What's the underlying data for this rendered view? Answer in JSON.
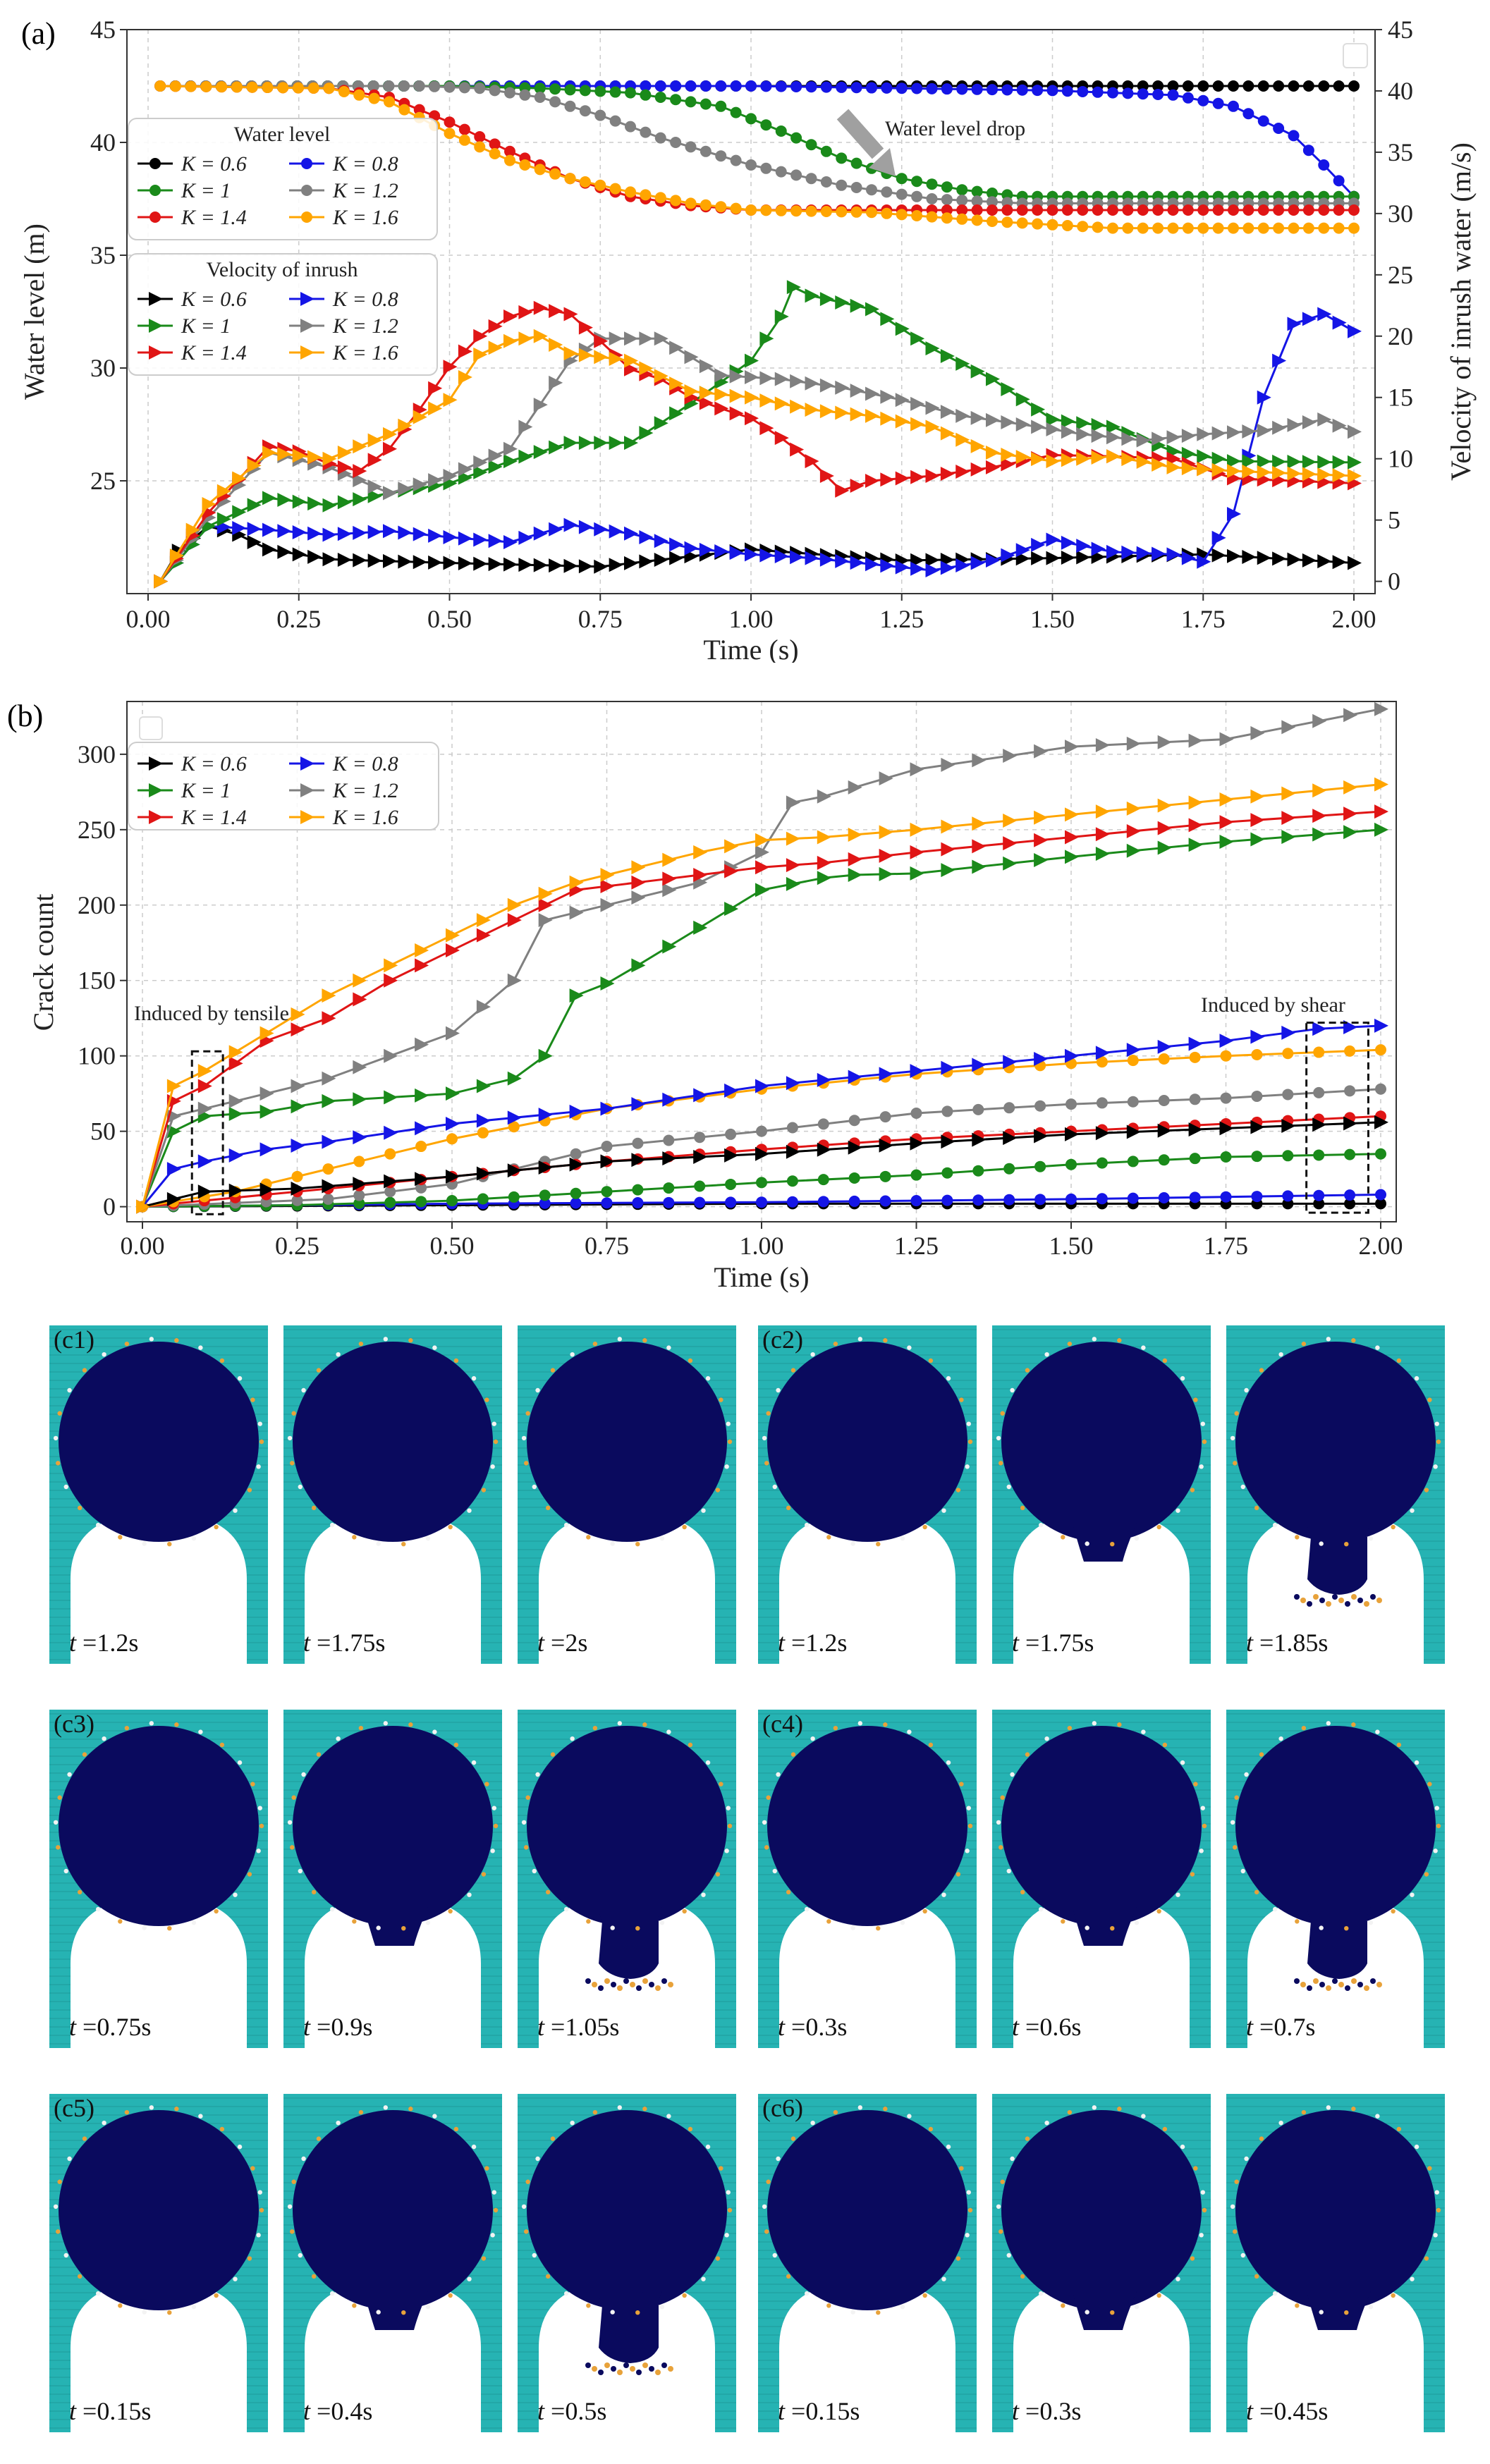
{
  "colors": {
    "K0.6": "#000000",
    "K0.8": "#1515e6",
    "K1": "#1a8a1a",
    "K1.2": "#808080",
    "K1.4": "#e01515",
    "K1.6": "#ffa500",
    "teal": "#26b3b3",
    "rock": "#0a0a5e",
    "grid": "#cccccc"
  },
  "chart_data": [
    {
      "id": "a",
      "panel_label": "(a)",
      "type": "line",
      "xlabel": "Time (s)",
      "ylabel": "Water level (m)",
      "y2label": "Velocity of inrush water (m/s)",
      "xlim": [
        0,
        2.0
      ],
      "ylim": [
        20,
        45
      ],
      "y2lim": [
        -1,
        45
      ],
      "xticks": [
        "0.00",
        "0.25",
        "0.50",
        "0.75",
        "1.00",
        "1.25",
        "1.50",
        "1.75",
        "2.00"
      ],
      "yticks": [
        "25",
        "30",
        "35",
        "40",
        "45"
      ],
      "y2ticks": [
        "0",
        "5",
        "10",
        "15",
        "20",
        "25",
        "30",
        "35",
        "40",
        "45"
      ],
      "legend_water_title": "Water level",
      "legend_velocity_title": "Velocity of inrush",
      "annotation": "Water level drop",
      "water_level": [
        {
          "name": "K = 0.6",
          "key": "K0.6",
          "x": [
            0.02,
            0.5,
            1.0,
            1.5,
            1.75,
            2.0
          ],
          "y": [
            42.5,
            42.5,
            42.5,
            42.5,
            42.5,
            42.5
          ]
        },
        {
          "name": "K = 0.8",
          "key": "K0.8",
          "x": [
            0.02,
            0.5,
            1.0,
            1.5,
            1.7,
            1.8,
            1.9,
            1.95,
            2.0
          ],
          "y": [
            42.5,
            42.5,
            42.5,
            42.3,
            42.1,
            41.6,
            40.3,
            39.0,
            37.6
          ]
        },
        {
          "name": "K = 1",
          "key": "K1",
          "x": [
            0.02,
            0.5,
            0.65,
            0.8,
            0.95,
            1.05,
            1.15,
            1.25,
            1.35,
            1.45,
            1.6,
            2.0
          ],
          "y": [
            42.5,
            42.5,
            42.4,
            42.2,
            41.6,
            40.5,
            39.3,
            38.4,
            37.9,
            37.6,
            37.6,
            37.6
          ]
        },
        {
          "name": "K = 1.2",
          "key": "K1.2",
          "x": [
            0.02,
            0.45,
            0.55,
            0.65,
            0.75,
            0.85,
            1.0,
            1.15,
            1.3,
            1.45,
            1.6,
            2.0
          ],
          "y": [
            42.5,
            42.5,
            42.4,
            42.0,
            41.2,
            40.2,
            39.0,
            38.1,
            37.5,
            37.3,
            37.3,
            37.3
          ]
        },
        {
          "name": "K = 1.4",
          "key": "K1.4",
          "x": [
            0.02,
            0.3,
            0.4,
            0.5,
            0.6,
            0.7,
            0.8,
            0.9,
            1.0,
            1.2,
            1.5,
            2.0
          ],
          "y": [
            42.5,
            42.4,
            42.0,
            40.9,
            39.6,
            38.4,
            37.6,
            37.2,
            37.0,
            37.0,
            37.0,
            37.0
          ]
        },
        {
          "name": "K = 1.6",
          "key": "K1.6",
          "x": [
            0.02,
            0.3,
            0.4,
            0.5,
            0.6,
            0.7,
            0.8,
            0.9,
            1.0,
            1.2,
            1.4,
            1.6,
            2.0
          ],
          "y": [
            42.5,
            42.4,
            41.8,
            40.4,
            39.2,
            38.4,
            37.8,
            37.3,
            37.0,
            36.9,
            36.5,
            36.2,
            36.2
          ]
        }
      ],
      "velocity": [
        {
          "name": "K = 0.6",
          "key": "K0.6",
          "x": [
            0.02,
            0.05,
            0.1,
            0.15,
            0.2,
            0.3,
            0.5,
            0.75,
            1.0,
            1.25,
            1.5,
            1.75,
            2.0
          ],
          "y": [
            0,
            2.5,
            4.5,
            3.8,
            2.6,
            1.8,
            1.5,
            1.2,
            2.6,
            1.7,
            1.9,
            2.2,
            1.5
          ]
        },
        {
          "name": "K = 0.8",
          "key": "K0.8",
          "x": [
            0.02,
            0.1,
            0.2,
            0.3,
            0.4,
            0.5,
            0.6,
            0.7,
            0.8,
            0.9,
            1.0,
            1.1,
            1.2,
            1.3,
            1.4,
            1.5,
            1.6,
            1.7,
            1.75,
            1.8,
            1.85,
            1.9,
            1.95,
            2.0
          ],
          "y": [
            0,
            4.5,
            4.2,
            3.8,
            4.1,
            3.6,
            3.2,
            4.6,
            3.9,
            2.7,
            2.2,
            1.9,
            1.4,
            0.9,
            1.7,
            3.4,
            2.4,
            2.2,
            1.6,
            5.5,
            15.0,
            21.0,
            21.8,
            20.4
          ]
        },
        {
          "name": "K = 1",
          "key": "K1",
          "x": [
            0.02,
            0.1,
            0.2,
            0.3,
            0.4,
            0.5,
            0.6,
            0.7,
            0.8,
            0.9,
            1.0,
            1.05,
            1.07,
            1.1,
            1.2,
            1.3,
            1.4,
            1.5,
            1.6,
            1.7,
            1.8,
            2.0
          ],
          "y": [
            0,
            4.5,
            6.8,
            6.2,
            7.2,
            8.0,
            9.8,
            11.3,
            11.3,
            14.5,
            18.0,
            21.6,
            24.0,
            23.3,
            22.2,
            19.0,
            16.5,
            13.2,
            12.6,
            10.6,
            9.8,
            9.7
          ]
        },
        {
          "name": "K = 1.2",
          "key": "K1.2",
          "x": [
            0.02,
            0.1,
            0.2,
            0.3,
            0.4,
            0.5,
            0.6,
            0.7,
            0.75,
            0.85,
            0.95,
            1.05,
            1.15,
            1.25,
            1.35,
            1.45,
            1.55,
            1.65,
            1.75,
            1.85,
            1.95,
            2.0
          ],
          "y": [
            0,
            5.2,
            10.5,
            9.3,
            7.2,
            8.6,
            10.8,
            18.0,
            19.8,
            19.8,
            16.8,
            16.5,
            15.8,
            14.8,
            13.5,
            12.8,
            12.0,
            11.5,
            12.0,
            12.3,
            13.2,
            12.2
          ]
        },
        {
          "name": "K = 1.4",
          "key": "K1.4",
          "x": [
            0.02,
            0.1,
            0.15,
            0.2,
            0.25,
            0.3,
            0.35,
            0.4,
            0.45,
            0.5,
            0.55,
            0.6,
            0.65,
            0.7,
            0.75,
            0.8,
            0.85,
            0.9,
            0.95,
            1.0,
            1.05,
            1.1,
            1.15,
            1.2,
            1.3,
            1.4,
            1.5,
            1.6,
            1.7,
            1.8,
            2.0
          ],
          "y": [
            0,
            5.6,
            8.3,
            11.0,
            10.6,
            9.6,
            9.0,
            10.8,
            14.0,
            17.5,
            20.0,
            21.6,
            22.3,
            21.8,
            19.6,
            17.3,
            16.5,
            15.0,
            14.1,
            13.3,
            11.7,
            9.8,
            7.4,
            8.2,
            8.6,
            9.3,
            10.3,
            10.2,
            10.0,
            8.4,
            8.0
          ]
        },
        {
          "name": "K = 1.6",
          "key": "K1.6",
          "x": [
            0.02,
            0.1,
            0.2,
            0.3,
            0.4,
            0.5,
            0.55,
            0.6,
            0.65,
            0.7,
            0.8,
            0.9,
            1.0,
            1.1,
            1.2,
            1.3,
            1.4,
            1.5,
            1.6,
            1.7,
            1.8,
            2.0
          ],
          "y": [
            0,
            6.3,
            10.5,
            10.0,
            12.0,
            14.8,
            18.5,
            19.6,
            20.0,
            18.6,
            18.0,
            15.5,
            15.0,
            14.0,
            13.5,
            12.6,
            10.5,
            9.8,
            10.2,
            9.3,
            9.0,
            8.6
          ]
        }
      ]
    },
    {
      "id": "b",
      "panel_label": "(b)",
      "type": "line",
      "xlabel": "Time (s)",
      "ylabel": "Crack count",
      "xlim": [
        0,
        2.0
      ],
      "ylim": [
        -10,
        335
      ],
      "xticks": [
        "0.00",
        "0.25",
        "0.50",
        "0.75",
        "1.00",
        "1.25",
        "1.50",
        "1.75",
        "2.00"
      ],
      "yticks": [
        "0",
        "50",
        "100",
        "150",
        "200",
        "250",
        "300"
      ],
      "annotations": [
        "Induced by tensile",
        "Induced by shear"
      ],
      "tension": [
        {
          "name": "K = 0.6",
          "key": "K0.6",
          "x": [
            0.0,
            0.1,
            0.25,
            0.5,
            0.75,
            1.0,
            1.25,
            1.5,
            1.75,
            2.0
          ],
          "y": [
            0,
            10,
            12,
            20,
            30,
            35,
            42,
            48,
            52,
            56
          ]
        },
        {
          "name": "K = 0.8",
          "key": "K0.8",
          "x": [
            0.0,
            0.05,
            0.1,
            0.2,
            0.3,
            0.5,
            0.75,
            1.0,
            1.25,
            1.5,
            1.75,
            1.9,
            2.0
          ],
          "y": [
            0,
            25,
            30,
            38,
            43,
            55,
            65,
            80,
            90,
            100,
            110,
            118,
            120
          ]
        },
        {
          "name": "K = 1",
          "key": "K1",
          "x": [
            0.0,
            0.05,
            0.1,
            0.2,
            0.3,
            0.5,
            0.6,
            0.65,
            0.7,
            0.75,
            0.8,
            0.9,
            1.0,
            1.1,
            1.15,
            1.25,
            1.5,
            1.75,
            2.0
          ],
          "y": [
            0,
            50,
            60,
            63,
            70,
            75,
            85,
            100,
            140,
            148,
            160,
            185,
            210,
            218,
            220,
            221,
            232,
            242,
            250
          ]
        },
        {
          "name": "K = 1.2",
          "key": "K1.2",
          "x": [
            0.0,
            0.05,
            0.1,
            0.2,
            0.3,
            0.4,
            0.5,
            0.6,
            0.65,
            0.7,
            0.75,
            0.8,
            0.9,
            1.0,
            1.05,
            1.1,
            1.25,
            1.5,
            1.75,
            2.0
          ],
          "y": [
            0,
            60,
            65,
            75,
            85,
            100,
            115,
            150,
            190,
            195,
            200,
            205,
            215,
            235,
            268,
            272,
            290,
            305,
            310,
            330
          ]
        },
        {
          "name": "K = 1.4",
          "key": "K1.4",
          "x": [
            0.0,
            0.05,
            0.1,
            0.2,
            0.3,
            0.4,
            0.5,
            0.6,
            0.7,
            0.8,
            0.9,
            1.0,
            1.1,
            1.25,
            1.5,
            1.75,
            2.0
          ],
          "y": [
            0,
            70,
            80,
            110,
            125,
            150,
            170,
            190,
            210,
            215,
            220,
            225,
            228,
            235,
            245,
            255,
            262
          ]
        },
        {
          "name": "K = 1.6",
          "key": "K1.6",
          "x": [
            0.0,
            0.05,
            0.1,
            0.2,
            0.3,
            0.4,
            0.5,
            0.6,
            0.7,
            0.8,
            0.9,
            1.0,
            1.1,
            1.25,
            1.5,
            1.75,
            2.0
          ],
          "y": [
            0,
            80,
            90,
            115,
            140,
            160,
            180,
            200,
            215,
            225,
            235,
            243,
            245,
            250,
            260,
            270,
            280
          ]
        }
      ],
      "shear": [
        {
          "name": "K = 0.6",
          "key": "K0.6",
          "x": [
            0.0,
            0.5,
            1.0,
            1.5,
            2.0
          ],
          "y": [
            0,
            1,
            2,
            2,
            2
          ]
        },
        {
          "name": "K = 0.8",
          "key": "K0.8",
          "x": [
            0.0,
            0.5,
            1.0,
            1.5,
            2.0
          ],
          "y": [
            0,
            2,
            3,
            5,
            8
          ]
        },
        {
          "name": "K = 1",
          "key": "K1",
          "x": [
            0.0,
            0.25,
            0.5,
            0.75,
            1.0,
            1.25,
            1.5,
            1.75,
            2.0
          ],
          "y": [
            0,
            1,
            4,
            10,
            16,
            21,
            28,
            33,
            35
          ]
        },
        {
          "name": "K = 1.2",
          "key": "K1.2",
          "x": [
            0.0,
            0.3,
            0.5,
            0.6,
            0.75,
            1.0,
            1.25,
            1.5,
            1.75,
            2.0
          ],
          "y": [
            0,
            5,
            15,
            25,
            40,
            50,
            62,
            68,
            72,
            78
          ]
        },
        {
          "name": "K = 1.4",
          "key": "K1.4",
          "x": [
            0.0,
            0.25,
            0.5,
            0.75,
            1.0,
            1.25,
            1.5,
            1.75,
            2.0
          ],
          "y": [
            0,
            10,
            20,
            30,
            38,
            45,
            50,
            55,
            60
          ]
        },
        {
          "name": "K = 1.6",
          "key": "K1.6",
          "x": [
            0.0,
            0.15,
            0.3,
            0.5,
            0.75,
            1.0,
            1.25,
            1.5,
            1.75,
            2.0
          ],
          "y": [
            0,
            10,
            25,
            45,
            65,
            78,
            88,
            95,
            100,
            104
          ]
        }
      ]
    }
  ],
  "snapshots": [
    {
      "label": "(c1)",
      "times": [
        "1.2s",
        "1.75s",
        "2s"
      ],
      "stage": [
        0,
        0,
        0
      ]
    },
    {
      "label": "(c2)",
      "times": [
        "1.2s",
        "1.75s",
        "1.85s"
      ],
      "stage": [
        0,
        1,
        2
      ]
    },
    {
      "label": "(c3)",
      "times": [
        "0.75s",
        "0.9s",
        "1.05s"
      ],
      "stage": [
        0,
        1,
        2
      ]
    },
    {
      "label": "(c4)",
      "times": [
        "0.3s",
        "0.6s",
        "0.7s"
      ],
      "stage": [
        0,
        1,
        2
      ]
    },
    {
      "label": "(c5)",
      "times": [
        "0.15s",
        "0.4s",
        "0.5s"
      ],
      "stage": [
        0,
        1,
        2
      ]
    },
    {
      "label": "(c6)",
      "times": [
        "0.15s",
        "0.3s",
        "0.45s"
      ],
      "stage": [
        0,
        1,
        1
      ]
    }
  ],
  "time_prefix": "t"
}
